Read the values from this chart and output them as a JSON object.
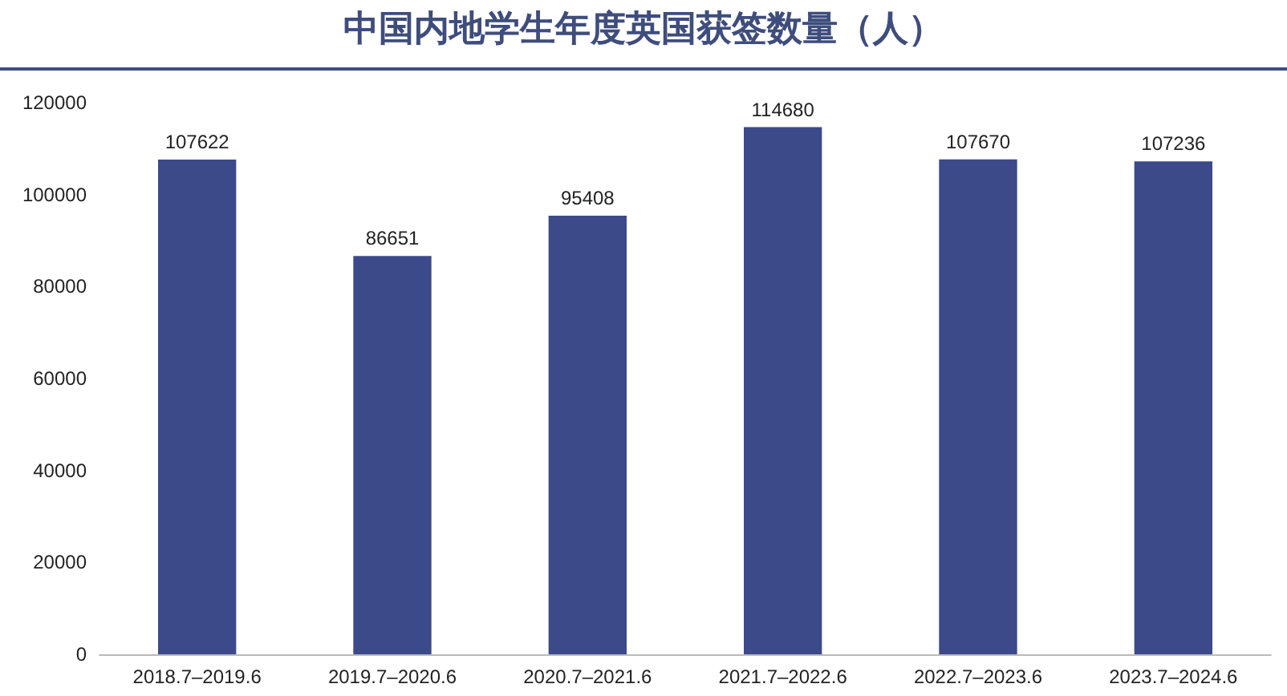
{
  "chart_data": {
    "type": "bar",
    "title": "中国内地学生年度英国获签数量（人）",
    "categories": [
      "2018.7–2019.6",
      "2019.7–2020.6",
      "2020.7–2021.6",
      "2021.7–2022.6",
      "2022.7–2023.6",
      "2023.7–2024.6"
    ],
    "values": [
      107622,
      86651,
      95408,
      114680,
      107670,
      107236
    ],
    "color": "#3c4a8a",
    "ylim": [
      0,
      120000
    ],
    "yticks": [
      0,
      20000,
      40000,
      60000,
      80000,
      100000,
      120000
    ],
    "grid": false,
    "data_labels": true
  }
}
